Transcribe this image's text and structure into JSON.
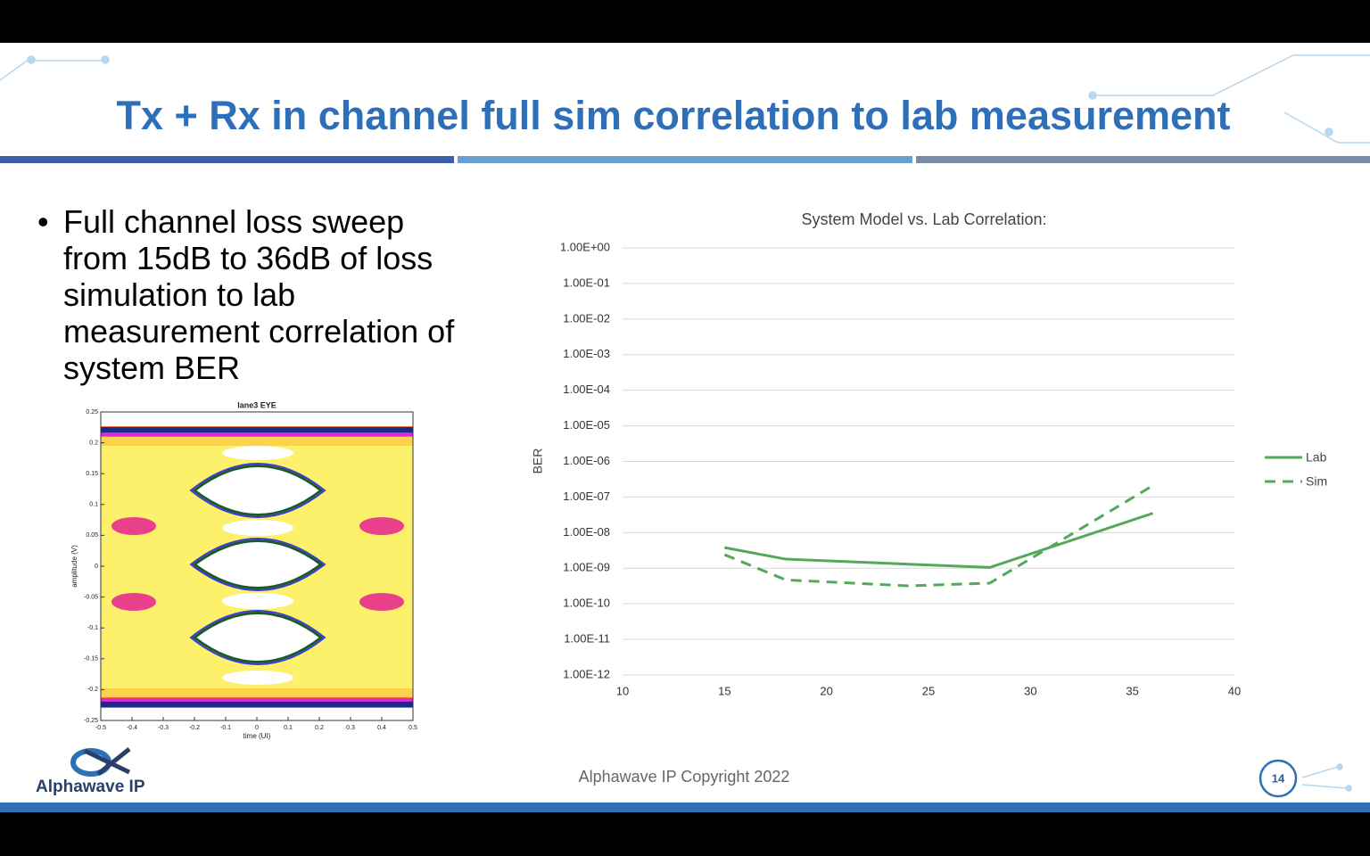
{
  "slide": {
    "title": "Tx + Rx in channel full sim correlation to lab measurement",
    "bullet": "Full channel loss sweep from 15dB to 36dB of loss simulation to lab measurement correlation of system BER",
    "footer": "Alphawave IP Copyright 2022",
    "page_number": "14",
    "logo": "Alphawave IP"
  },
  "chart_data": [
    {
      "type": "line",
      "title": "System Model vs.  Lab Correlation:",
      "ylabel": "BER",
      "yscale": "log",
      "grid": true,
      "legend": "right",
      "x": [
        15,
        18,
        24,
        28,
        36
      ],
      "series": [
        {
          "name": "Lab",
          "color": "#55a859",
          "line_style": "solid",
          "values": [
            3.8e-09,
            1.8e-09,
            1.3e-09,
            1.05e-09,
            3.5e-08
          ]
        },
        {
          "name": "Sim",
          "color": "#55a859",
          "line_style": "dashed",
          "values": [
            2.4e-09,
            4.7e-10,
            3.2e-10,
            3.8e-10,
            2.1e-07
          ]
        }
      ],
      "xlim": [
        10,
        40
      ],
      "xticks": [
        10,
        15,
        20,
        25,
        30,
        35,
        40
      ],
      "ylim": [
        1e-12,
        1
      ],
      "yticks": [
        {
          "value": 1,
          "label": "1.00E+00"
        },
        {
          "value": 0.1,
          "label": "1.00E-01"
        },
        {
          "value": 0.01,
          "label": "1.00E-02"
        },
        {
          "value": 0.001,
          "label": "1.00E-03"
        },
        {
          "value": 0.0001,
          "label": "1.00E-04"
        },
        {
          "value": 1e-05,
          "label": "1.00E-05"
        },
        {
          "value": 1e-06,
          "label": "1.00E-06"
        },
        {
          "value": 1e-07,
          "label": "1.00E-07"
        },
        {
          "value": 1e-08,
          "label": "1.00E-08"
        },
        {
          "value": 1e-09,
          "label": "1.00E-09"
        },
        {
          "value": 1e-10,
          "label": "1.00E-10"
        },
        {
          "value": 1e-11,
          "label": "1.00E-11"
        },
        {
          "value": 1e-12,
          "label": "1.00E-12"
        }
      ]
    },
    {
      "type": "eye",
      "title": "lane3  EYE",
      "xlabel": "time (UI)",
      "ylabel": "amplitude (V)",
      "xlim": [
        -0.5,
        0.5
      ],
      "xticks": [
        -0.5,
        -0.4,
        -0.3,
        -0.2,
        -0.1,
        0,
        0.1,
        0.2,
        0.3,
        0.4,
        0.5
      ],
      "ylim": [
        -0.25,
        0.25
      ],
      "yticks": [
        -0.25,
        -0.2,
        -0.15,
        -0.1,
        -0.05,
        0,
        0.05,
        0.1,
        0.15,
        0.2,
        0.25
      ]
    }
  ]
}
